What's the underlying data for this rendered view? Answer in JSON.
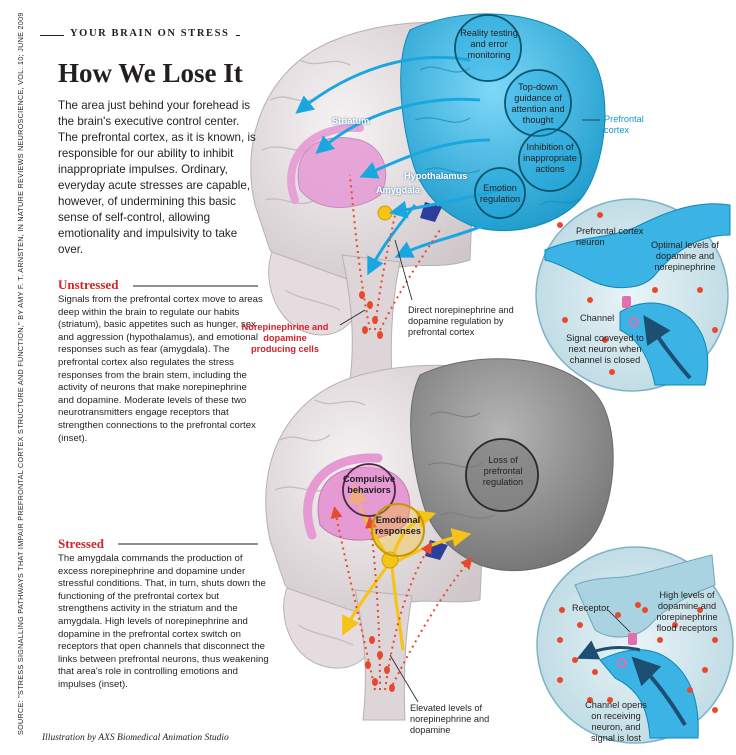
{
  "header": {
    "kicker": "YOUR BRAIN ON STRESS",
    "title": "How We Lose It",
    "intro": "The area just behind your forehead is the brain's executive control center. The prefrontal cortex, as it is known, is responsible for our ability to inhibit inappropriate impulses. Ordinary, everyday acute stresses are capable, however, of undermining this basic sense of self-control, allowing emotionality and impulsivity to take over."
  },
  "unstressed": {
    "heading": "Unstressed",
    "body": "Signals from the prefrontal cortex move to areas deep within the brain to regulate our habits (striatum), basic appetites such as hunger, sex and aggression (hypothalamus), and emotional responses such as fear (amygdala). The prefrontal cortex also regulates the stress responses from the brain stem, including the activity of neurons that make norepinephrine and dopamine. Moderate levels of these two neurotransmitters engage receptors that strengthen connections to the prefrontal cortex (inset)."
  },
  "stressed": {
    "heading": "Stressed",
    "body": "The amygdala commands the production of excess norepinephrine and dopamine under stressful conditions. That, in turn, shuts down the functioning of the prefrontal cortex but strengthens activity in the striatum and the amygdala. High levels of norepinephrine and dopamine in the prefrontal cortex switch on receptors that open channels that disconnect the links between prefrontal neurons, thus weakening that area's role in controlling emotions and impulses (inset)."
  },
  "top_brain": {
    "circles": [
      "Reality testing and error monitoring",
      "Top-down guidance of attention and thought",
      "Inhibition of inappropriate actions",
      "Emotion regulation"
    ],
    "prefrontal_label": "Prefrontal cortex",
    "striatum": "Striatum",
    "hypothalamus": "Hypothalamus",
    "amygdala": "Amygdala",
    "producing_cells": "Norepinephrine and dopamine producing cells",
    "direct_regulation": "Direct norepinephrine and dopamine regulation by prefrontal cortex"
  },
  "top_inset": {
    "neuron": "Prefrontal cortex neuron",
    "optimal": "Optimal levels of dopamine and norepinephrine",
    "channel": "Channel",
    "signal": "Signal conveyed to next neuron when channel is closed"
  },
  "bottom_brain": {
    "compulsive": "Compulsive behaviors",
    "emotional": "Emotional responses",
    "loss": "Loss of prefrontal regulation",
    "elevated": "Elevated levels of norepinephrine and dopamine"
  },
  "bottom_inset": {
    "receptor": "Receptor",
    "high_levels": "High levels of dopamine and norepinephrine flood receptors",
    "channel_opens": "Channel opens on receiving neuron, and signal is lost"
  },
  "source": "SOURCE: \"STRESS SIGNALLING PATHWAYS THAT IMPAIR PREFRONTAL CORTEX STRUCTURE AND FUNCTION,\" BY AMY F. T. ARNSTEN, IN NATURE REVIEWS NEUROSCIENCE, VOL. 10; JUNE 2009",
  "credit": "Illustration by AXS Biomedical Animation Studio",
  "colors": {
    "accent_red": "#d1232a",
    "prefrontal_blue": "#1aa7df",
    "limbic_pink": "#e59ad4",
    "stressed_gray": "#8f8f8f",
    "amygdala_yellow": "#f6c419"
  }
}
